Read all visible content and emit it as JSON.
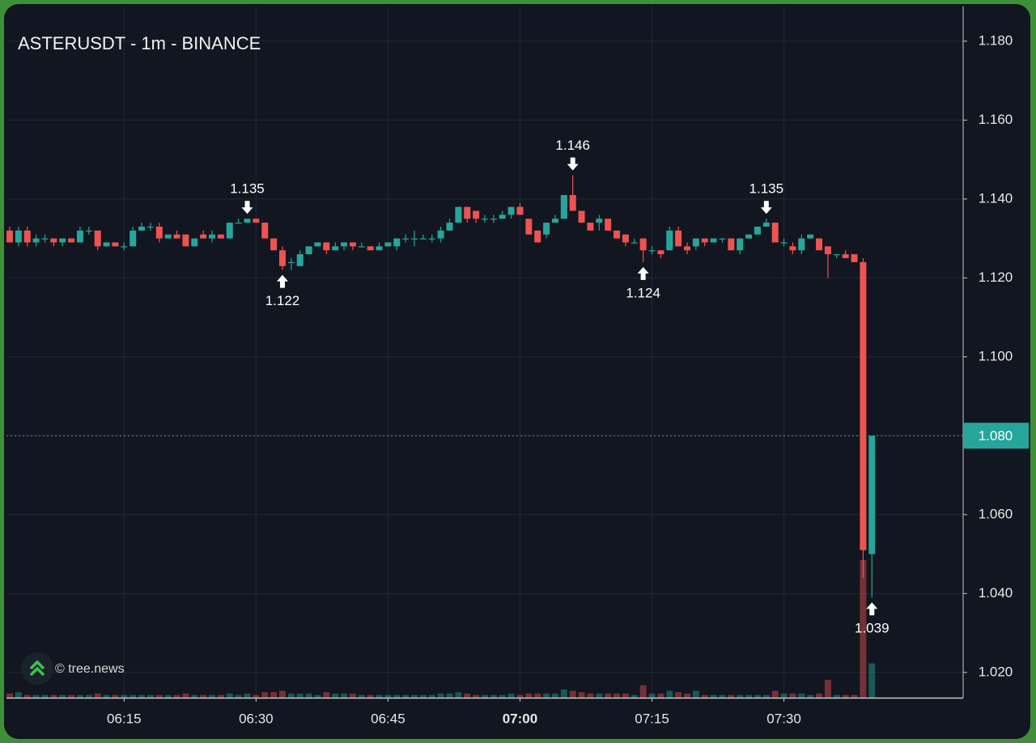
{
  "chart_data": {
    "type": "candlestick",
    "title": "ASTERUSDT - 1m - BINANCE",
    "watermark": "© tree.news",
    "up_color": "#26a69a",
    "down_color": "#ef5350",
    "grid": true,
    "bold_full_hours": true,
    "x": [
      "06:02",
      "06:03",
      "06:04",
      "06:05",
      "06:06",
      "06:07",
      "06:08",
      "06:09",
      "06:10",
      "06:11",
      "06:12",
      "06:13",
      "06:14",
      "06:15",
      "06:16",
      "06:17",
      "06:18",
      "06:19",
      "06:20",
      "06:21",
      "06:22",
      "06:23",
      "06:24",
      "06:25",
      "06:26",
      "06:27",
      "06:28",
      "06:29",
      "06:30",
      "06:31",
      "06:32",
      "06:33",
      "06:34",
      "06:35",
      "06:36",
      "06:37",
      "06:38",
      "06:39",
      "06:40",
      "06:41",
      "06:42",
      "06:43",
      "06:44",
      "06:45",
      "06:46",
      "06:47",
      "06:48",
      "06:49",
      "06:50",
      "06:51",
      "06:52",
      "06:53",
      "06:54",
      "06:55",
      "06:56",
      "06:57",
      "06:58",
      "06:59",
      "07:00",
      "07:01",
      "07:02",
      "07:03",
      "07:04",
      "07:05",
      "07:06",
      "07:07",
      "07:08",
      "07:09",
      "07:10",
      "07:11",
      "07:12",
      "07:13",
      "07:14",
      "07:15",
      "07:16",
      "07:17",
      "07:18",
      "07:19",
      "07:20",
      "07:21",
      "07:22",
      "07:23",
      "07:24",
      "07:25",
      "07:26",
      "07:27",
      "07:28",
      "07:29",
      "07:30",
      "07:31",
      "07:32",
      "07:33",
      "07:34",
      "07:35",
      "07:36",
      "07:37",
      "07:38",
      "07:39",
      "07:40"
    ],
    "open": [
      1.132,
      1.129,
      1.132,
      1.129,
      1.13,
      1.13,
      1.129,
      1.13,
      1.129,
      1.132,
      1.132,
      1.128,
      1.129,
      1.128,
      1.128,
      1.132,
      1.133,
      1.133,
      1.13,
      1.131,
      1.131,
      1.128,
      1.131,
      1.13,
      1.131,
      1.13,
      1.134,
      1.134,
      1.135,
      1.134,
      1.13,
      1.127,
      1.124,
      1.123,
      1.126,
      1.128,
      1.129,
      1.127,
      1.128,
      1.129,
      1.128,
      1.128,
      1.127,
      1.128,
      1.128,
      1.13,
      1.13,
      1.13,
      1.13,
      1.13,
      1.132,
      1.134,
      1.138,
      1.137,
      1.135,
      1.135,
      1.135,
      1.136,
      1.138,
      1.135,
      1.132,
      1.131,
      1.134,
      1.135,
      1.141,
      1.137,
      1.134,
      1.134,
      1.135,
      1.132,
      1.131,
      1.129,
      1.13,
      1.127,
      1.127,
      1.127,
      1.132,
      1.128,
      1.128,
      1.13,
      1.129,
      1.13,
      1.13,
      1.127,
      1.13,
      1.131,
      1.133,
      1.134,
      1.129,
      1.128,
      1.127,
      1.13,
      1.13,
      1.128,
      1.126,
      1.126,
      1.126,
      1.124,
      1.05
    ],
    "high": [
      1.133,
      1.133,
      1.133,
      1.131,
      1.131,
      1.13,
      1.13,
      1.13,
      1.133,
      1.133,
      1.132,
      1.129,
      1.129,
      1.129,
      1.133,
      1.134,
      1.134,
      1.134,
      1.131,
      1.132,
      1.131,
      1.13,
      1.132,
      1.132,
      1.131,
      1.134,
      1.135,
      1.135,
      1.135,
      1.134,
      1.13,
      1.128,
      1.125,
      1.127,
      1.128,
      1.129,
      1.129,
      1.129,
      1.129,
      1.129,
      1.129,
      1.128,
      1.129,
      1.129,
      1.13,
      1.131,
      1.132,
      1.131,
      1.131,
      1.133,
      1.135,
      1.138,
      1.138,
      1.137,
      1.136,
      1.136,
      1.137,
      1.138,
      1.139,
      1.135,
      1.132,
      1.134,
      1.136,
      1.141,
      1.146,
      1.137,
      1.134,
      1.136,
      1.135,
      1.132,
      1.131,
      1.13,
      1.13,
      1.128,
      1.127,
      1.133,
      1.133,
      1.129,
      1.13,
      1.13,
      1.13,
      1.13,
      1.13,
      1.13,
      1.131,
      1.133,
      1.135,
      1.134,
      1.13,
      1.129,
      1.131,
      1.131,
      1.13,
      1.128,
      1.126,
      1.127,
      1.126,
      1.125,
      1.08
    ],
    "low": [
      1.129,
      1.128,
      1.128,
      1.128,
      1.129,
      1.128,
      1.128,
      1.129,
      1.129,
      1.131,
      1.127,
      1.128,
      1.128,
      1.127,
      1.128,
      1.132,
      1.132,
      1.129,
      1.13,
      1.13,
      1.128,
      1.128,
      1.13,
      1.129,
      1.13,
      1.13,
      1.134,
      1.134,
      1.134,
      1.13,
      1.127,
      1.122,
      1.122,
      1.123,
      1.126,
      1.128,
      1.126,
      1.127,
      1.127,
      1.127,
      1.128,
      1.127,
      1.127,
      1.128,
      1.127,
      1.129,
      1.128,
      1.13,
      1.129,
      1.129,
      1.132,
      1.134,
      1.134,
      1.134,
      1.134,
      1.134,
      1.135,
      1.135,
      1.136,
      1.131,
      1.129,
      1.13,
      1.134,
      1.135,
      1.137,
      1.134,
      1.132,
      1.132,
      1.132,
      1.13,
      1.128,
      1.129,
      1.124,
      1.126,
      1.125,
      1.127,
      1.128,
      1.126,
      1.127,
      1.128,
      1.129,
      1.129,
      1.127,
      1.126,
      1.13,
      1.131,
      1.133,
      1.129,
      1.128,
      1.126,
      1.126,
      1.13,
      1.127,
      1.12,
      1.125,
      1.125,
      1.124,
      1.044,
      1.039
    ],
    "close": [
      1.129,
      1.132,
      1.129,
      1.13,
      1.13,
      1.129,
      1.13,
      1.129,
      1.132,
      1.132,
      1.128,
      1.129,
      1.128,
      1.128,
      1.132,
      1.133,
      1.133,
      1.13,
      1.131,
      1.13,
      1.128,
      1.13,
      1.13,
      1.131,
      1.13,
      1.134,
      1.134,
      1.135,
      1.134,
      1.13,
      1.127,
      1.123,
      1.124,
      1.126,
      1.128,
      1.129,
      1.127,
      1.128,
      1.129,
      1.128,
      1.128,
      1.127,
      1.128,
      1.129,
      1.13,
      1.13,
      1.13,
      1.13,
      1.13,
      1.132,
      1.134,
      1.138,
      1.135,
      1.135,
      1.135,
      1.135,
      1.136,
      1.138,
      1.136,
      1.131,
      1.129,
      1.134,
      1.135,
      1.141,
      1.137,
      1.134,
      1.132,
      1.135,
      1.132,
      1.13,
      1.129,
      1.129,
      1.127,
      1.127,
      1.126,
      1.132,
      1.128,
      1.127,
      1.13,
      1.129,
      1.13,
      1.13,
      1.127,
      1.13,
      1.131,
      1.133,
      1.134,
      1.129,
      1.129,
      1.127,
      1.13,
      1.131,
      1.127,
      1.126,
      1.126,
      1.125,
      1.124,
      1.051,
      1.08
    ],
    "volume": [
      3,
      4,
      2,
      2,
      2,
      2,
      2,
      2,
      2,
      2,
      3,
      2,
      2,
      2,
      2,
      2,
      2,
      2,
      2,
      2,
      3,
      2,
      2,
      2,
      2,
      3,
      2,
      3,
      2,
      4,
      4,
      5,
      3,
      3,
      3,
      2,
      4,
      3,
      3,
      3,
      2,
      2,
      2,
      2,
      2,
      2,
      2,
      2,
      2,
      3,
      3,
      4,
      3,
      2,
      2,
      2,
      2,
      3,
      2,
      3,
      3,
      3,
      3,
      6,
      5,
      4,
      3,
      3,
      3,
      3,
      3,
      2,
      9,
      3,
      3,
      5,
      4,
      3,
      5,
      2,
      2,
      2,
      2,
      2,
      2,
      2,
      2,
      5,
      3,
      3,
      3,
      2,
      3,
      13,
      2,
      2,
      2,
      100,
      25
    ],
    "ylim": [
      1.0136,
      1.1888
    ],
    "yticks": [
      {
        "value": 1.02,
        "label": "1.020"
      },
      {
        "value": 1.04,
        "label": "1.040"
      },
      {
        "value": 1.06,
        "label": "1.060"
      },
      {
        "value": 1.08,
        "label": "1.080"
      },
      {
        "value": 1.1,
        "label": "1.100"
      },
      {
        "value": 1.12,
        "label": "1.120"
      },
      {
        "value": 1.14,
        "label": "1.140"
      },
      {
        "value": 1.16,
        "label": "1.160"
      },
      {
        "value": 1.18,
        "label": "1.180"
      }
    ],
    "xticks": [
      "06:15",
      "06:30",
      "06:45",
      "07:00",
      "07:15",
      "07:30"
    ],
    "last_price": {
      "value": 1.08,
      "label": "1.080"
    },
    "annotations": [
      {
        "x": "06:29",
        "value": 1.135,
        "side": "above"
      },
      {
        "x": "06:33",
        "value": 1.122,
        "side": "below"
      },
      {
        "x": "07:06",
        "value": 1.146,
        "side": "above"
      },
      {
        "x": "07:14",
        "value": 1.124,
        "side": "below"
      },
      {
        "x": "07:28",
        "value": 1.135,
        "side": "above"
      },
      {
        "x": "07:40",
        "value": 1.039,
        "side": "below"
      }
    ]
  }
}
